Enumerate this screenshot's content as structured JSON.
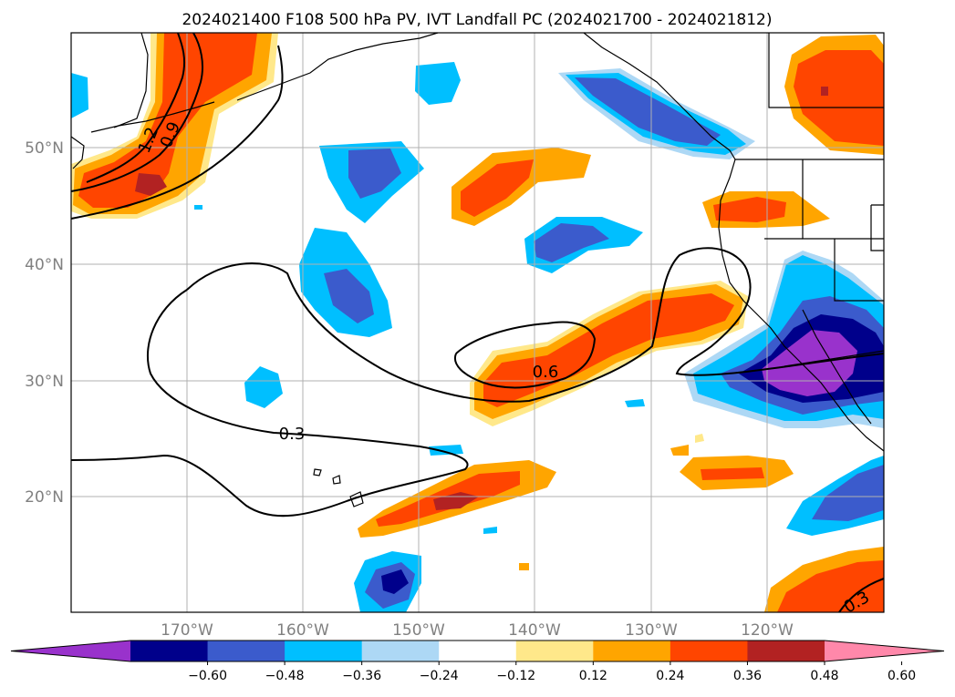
{
  "title": "2024021400 F108 500 hPa PV, IVT Landfall PC (2024021700 - 2024021812)",
  "map": {
    "lat_labels": [
      "50°N",
      "40°N",
      "30°N",
      "20°N"
    ],
    "lon_labels": [
      "170°W",
      "160°W",
      "150°W",
      "140°W",
      "130°W",
      "120°W"
    ],
    "contour_labels": [
      "1.2",
      "0.9",
      "0.6",
      "0.3",
      "0.3"
    ]
  },
  "colorbar": {
    "ticks": [
      "−0.60",
      "−0.48",
      "−0.36",
      "−0.24",
      "−0.12",
      "0.12",
      "0.24",
      "0.36",
      "0.48",
      "0.60"
    ],
    "colors": [
      "#9932cc",
      "#00008b",
      "#3b5bcc",
      "#00bfff",
      "#add8f5",
      "#ffffff",
      "#ffe88a",
      "#ffa500",
      "#ff4500",
      "#b22222",
      "#ff88aa"
    ]
  },
  "colors": {
    "grid": "#b0b0b0",
    "coast": "#000000",
    "frame": "#000000"
  }
}
